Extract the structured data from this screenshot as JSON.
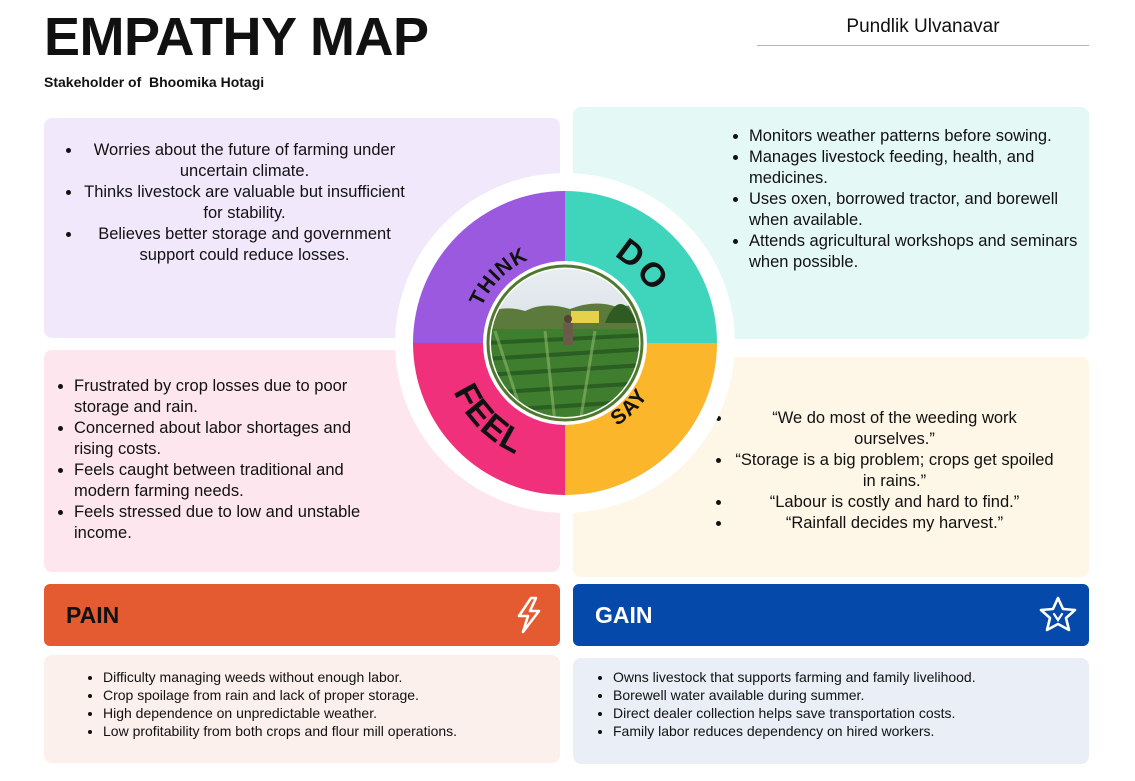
{
  "header": {
    "title": "EMPATHY MAP",
    "subtitle": "Stakeholder of  Bhoomika Hotagi",
    "author": "Pundlik Ulvanavar"
  },
  "quadrants": {
    "think": {
      "label": "THINK",
      "color": "#9b59e0",
      "items": [
        "Worries about the future of farming under uncertain climate.",
        "Thinks livestock are valuable but insufficient for stability.",
        "Believes better storage and government support could reduce losses."
      ]
    },
    "do": {
      "label": "DO",
      "color": "#3fd5bd",
      "items": [
        "Monitors weather patterns before sowing.",
        "Manages livestock feeding, health, and medicines.",
        "Uses oxen, borrowed tractor, and borewell when available.",
        "Attends agricultural workshops and seminars when possible."
      ]
    },
    "feel": {
      "label": "FEEL",
      "color": "#f0307a",
      "items": [
        "Frustrated by crop losses due to poor storage and rain.",
        "Concerned about labor shortages and rising costs.",
        "Feels caught between traditional and modern farming needs.",
        "Feels stressed due to low and unstable income."
      ]
    },
    "say": {
      "label": "SAY",
      "color": "#fbb62b",
      "items": [
        "“We do most of the weeding work ourselves.”",
        "“Storage is a big problem; crops get spoiled in rains.”",
        "“Labour is costly and hard to find.”",
        "“Rainfall decides my harvest.”"
      ]
    }
  },
  "pain": {
    "label": "PAIN",
    "icon": "lightning-bolt-icon",
    "color": "#e55b31",
    "items": [
      "Difficulty managing weeds without enough labor.",
      "Crop spoilage from rain and lack of proper storage.",
      "High dependence on unpredictable weather.",
      "Low profitability from both crops and flour mill operations."
    ]
  },
  "gain": {
    "label": "GAIN",
    "icon": "star-icon",
    "color": "#054aaa",
    "items": [
      "Owns livestock that supports farming and family livelihood.",
      "Borewell water available during summer.",
      "Direct dealer collection helps save transportation costs.",
      "Family labor reduces dependency on hired workers."
    ]
  }
}
